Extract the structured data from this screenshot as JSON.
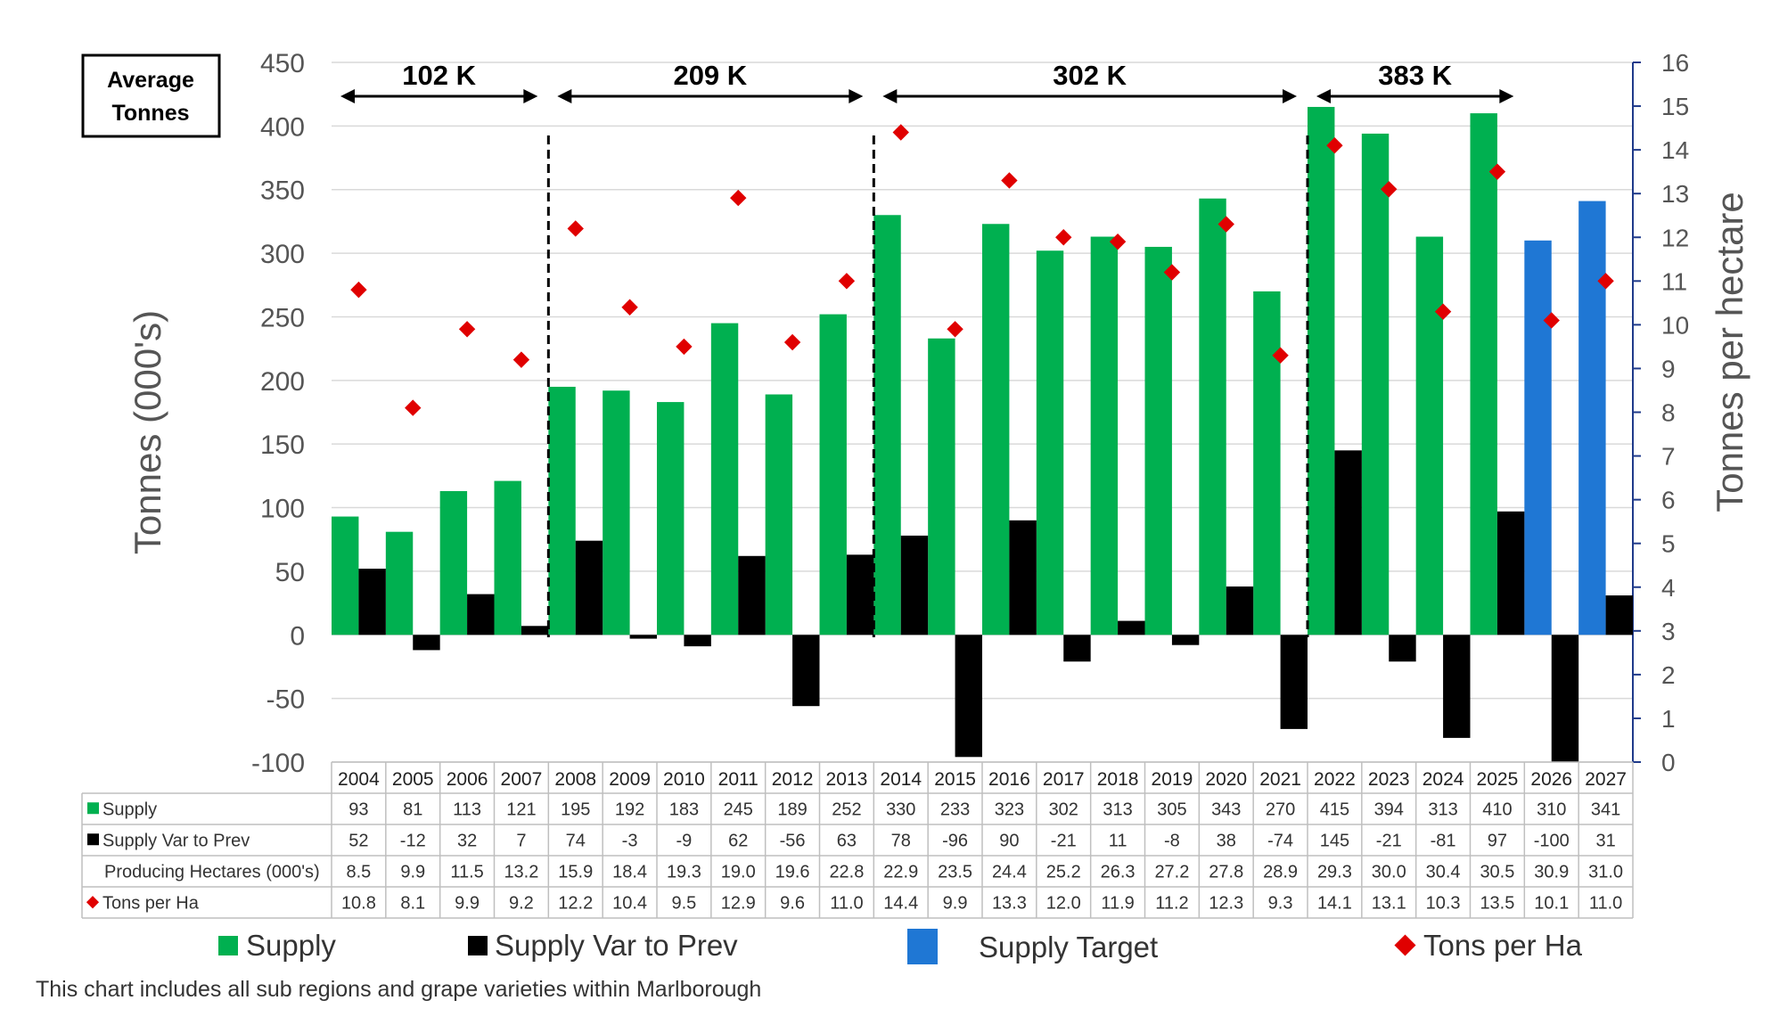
{
  "box_label": {
    "line1": "Average",
    "line2": "Tonnes"
  },
  "left_axis_label": "Tonnes (000's)",
  "right_axis_label": "Tonnes per hectare",
  "footnote": "This chart includes all sub regions and grape varieties within Marlborough",
  "legend": {
    "supply": "Supply",
    "var": "Supply Var to Prev",
    "target": "Supply Target",
    "tons": "Tons per Ha"
  },
  "table_rows": {
    "supply": "Supply",
    "var": "Supply Var to Prev",
    "hectares": "Producing Hectares (000's)",
    "tons": "Tons per Ha"
  },
  "periods": [
    {
      "label": "102 K",
      "from": "2004",
      "to": "2007"
    },
    {
      "label": "209 K",
      "from": "2008",
      "to": "2013"
    },
    {
      "label": "302 K",
      "from": "2014",
      "to": "2021"
    },
    {
      "label": "383 K",
      "from": "2022",
      "to": "2025"
    }
  ],
  "colors": {
    "supply": "#00b050",
    "var": "#000000",
    "target": "#1f77d4",
    "tons": "#e00000",
    "right_axis": "#1f3a8a",
    "grid": "#d9d9d9"
  },
  "chart_data": {
    "type": "bar",
    "categories": [
      "2004",
      "2005",
      "2006",
      "2007",
      "2008",
      "2009",
      "2010",
      "2011",
      "2012",
      "2013",
      "2014",
      "2015",
      "2016",
      "2017",
      "2018",
      "2019",
      "2020",
      "2021",
      "2022",
      "2023",
      "2024",
      "2025",
      "2026",
      "2027"
    ],
    "series": [
      {
        "name": "Supply",
        "axis": "left",
        "type": "bar",
        "values": [
          93,
          81,
          113,
          121,
          195,
          192,
          183,
          245,
          189,
          252,
          330,
          233,
          323,
          302,
          313,
          305,
          343,
          270,
          415,
          394,
          313,
          410,
          310,
          341
        ],
        "target_from": "2026"
      },
      {
        "name": "Supply Var to Prev",
        "axis": "left",
        "type": "bar",
        "values": [
          52,
          -12,
          32,
          7,
          74,
          -3,
          -9,
          62,
          -56,
          63,
          78,
          -96,
          90,
          -21,
          11,
          -8,
          38,
          -74,
          145,
          -21,
          -81,
          97,
          -100,
          31
        ]
      },
      {
        "name": "Producing Hectares (000's)",
        "type": "table",
        "values": [
          "8.5",
          "9.9",
          "11.5",
          "13.2",
          "15.9",
          "18.4",
          "19.3",
          "19.0",
          "19.6",
          "22.8",
          "22.9",
          "23.5",
          "24.4",
          "25.2",
          "26.3",
          "27.2",
          "27.8",
          "28.9",
          "29.3",
          "30.0",
          "30.4",
          "30.5",
          "30.9",
          "31.0"
        ]
      },
      {
        "name": "Tons per Ha",
        "axis": "right",
        "type": "scatter",
        "values": [
          10.8,
          8.1,
          9.9,
          9.2,
          12.2,
          10.4,
          9.5,
          12.9,
          9.6,
          11.0,
          14.4,
          9.9,
          13.3,
          12.0,
          11.9,
          11.2,
          12.3,
          9.3,
          14.1,
          13.1,
          10.3,
          13.5,
          10.1,
          11.0
        ]
      }
    ],
    "ylim": [
      -100,
      450
    ],
    "yticks": [
      -100,
      -50,
      0,
      50,
      100,
      150,
      200,
      250,
      300,
      350,
      400,
      450
    ],
    "y2lim": [
      0,
      16
    ],
    "y2ticks": [
      0,
      1,
      2,
      3,
      4,
      5,
      6,
      7,
      8,
      9,
      10,
      11,
      12,
      13,
      14,
      15,
      16
    ],
    "period_dividers": [
      "2008",
      "2014",
      "2022"
    ],
    "grid": true,
    "legend_position": "bottom"
  }
}
